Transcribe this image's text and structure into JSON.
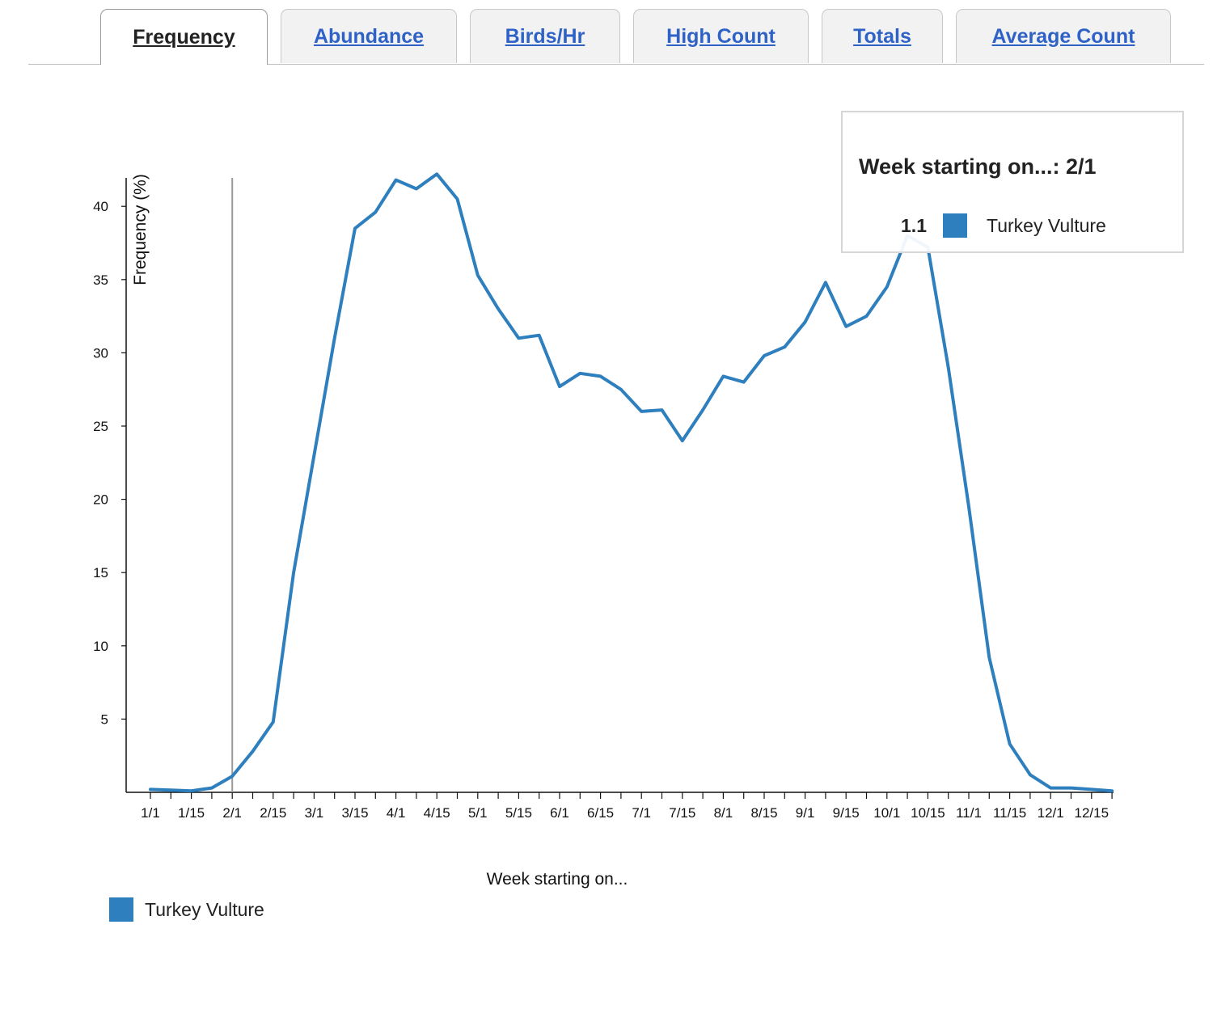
{
  "tabs": [
    {
      "label": "Frequency",
      "active": true
    },
    {
      "label": "Abundance",
      "active": false
    },
    {
      "label": "Birds/Hr",
      "active": false
    },
    {
      "label": "High Count",
      "active": false
    },
    {
      "label": "Totals",
      "active": false
    },
    {
      "label": "Average Count",
      "active": false
    }
  ],
  "tooltip": {
    "title": "Week starting on...: 2/1",
    "value": "1.1",
    "series": "Turkey Vulture"
  },
  "legend": {
    "label": "Turkey Vulture"
  },
  "chart_data": {
    "type": "line",
    "xlabel": "Week starting on...",
    "ylabel": "Frequency (%)",
    "ylim": [
      0,
      42
    ],
    "yticks": [
      5,
      10,
      15,
      20,
      25,
      30,
      35,
      40
    ],
    "xticklabels": [
      "1/1",
      "1/15",
      "2/1",
      "2/15",
      "3/1",
      "3/15",
      "4/1",
      "4/15",
      "5/1",
      "5/15",
      "6/1",
      "6/15",
      "7/1",
      "7/15",
      "8/1",
      "8/15",
      "9/1",
      "9/15",
      "10/1",
      "10/15",
      "11/1",
      "11/15",
      "12/1",
      "12/15"
    ],
    "highlight_week": "2/1",
    "series": [
      {
        "name": "Turkey Vulture",
        "color": "#2e7fbd",
        "values": [
          0.2,
          0.15,
          0.1,
          0.3,
          1.1,
          2.8,
          4.8,
          15.0,
          23.0,
          31.0,
          38.5,
          39.6,
          41.8,
          41.2,
          42.2,
          40.5,
          35.3,
          33.0,
          31.0,
          31.2,
          27.7,
          28.6,
          28.4,
          27.5,
          26.0,
          26.1,
          24.0,
          26.1,
          28.4,
          28.0,
          29.8,
          30.4,
          32.1,
          34.8,
          31.8,
          32.5,
          34.5,
          38.0,
          37.2,
          29.0,
          19.5,
          9.2,
          3.3,
          1.2,
          0.3,
          0.3,
          0.2,
          0.1
        ]
      }
    ]
  }
}
